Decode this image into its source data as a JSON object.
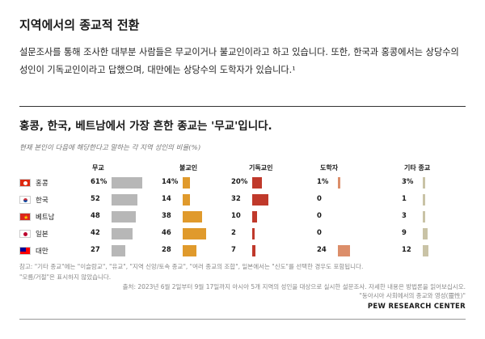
{
  "page": {
    "heading": "지역에서의 종교적 전환",
    "intro": "설문조사를 통해 조사한 대부분 사람들은 무교이거나 불교인이라고 하고 있습니다. 또한, 한국과 홍콩에서는 상당수의 성인이 기독교인이라고 답했으며, 대만에는 상당수의 도학자가 있습니다.¹"
  },
  "chart_data": {
    "type": "bar",
    "title": "홍콩, 한국, 베트남에서 가장 흔한 종교는 '무교'입니다.",
    "subtitle": "현재 본인이 다음에 해당한다고 말하는 각 지역 성인의 비율(%)",
    "countries": [
      "홍콩",
      "한국",
      "베트남",
      "일본",
      "대만"
    ],
    "flags": [
      "hongkong",
      "korea",
      "vietnam",
      "japan",
      "taiwan"
    ],
    "series": [
      {
        "name": "무교",
        "values": [
          61,
          52,
          48,
          42,
          27
        ],
        "labels": [
          "61%",
          "52",
          "48",
          "42",
          "27"
        ],
        "color": "#b7b7b7"
      },
      {
        "name": "불교인",
        "values": [
          14,
          14,
          38,
          46,
          28
        ],
        "labels": [
          "14%",
          "14",
          "38",
          "46",
          "28"
        ],
        "color": "#e09a2c"
      },
      {
        "name": "기독교인",
        "values": [
          20,
          32,
          10,
          2,
          7
        ],
        "labels": [
          "20%",
          "32",
          "10",
          "2",
          "7"
        ],
        "color": "#c0392b"
      },
      {
        "name": "도학자",
        "values": [
          1,
          0,
          0,
          0,
          24
        ],
        "labels": [
          "1%",
          "0",
          "0",
          "0",
          "24"
        ],
        "color": "#dc8e6a"
      },
      {
        "name": "기타 종교",
        "values": [
          3,
          1,
          3,
          9,
          12
        ],
        "labels": [
          "3%",
          "1",
          "3",
          "9",
          "12"
        ],
        "color": "#c9c3a6"
      }
    ],
    "notes": "참고: \"기타 종교\"에는 \"이슬람교\", \"유교\", \"지역 신앙/토속 종교\", \"여러 종교의 조합\", 일본에서는 \"신도\"를 선택한 경우도 포함됩니다.\n\"모름/거절\"은 표시하지 않았습니다.",
    "source": "출처: 2023년 6월 2일부터 9월 17일까지 아시아 5개 지역의 성인을 대상으로 실시한 설문조사. 자세한 내용은 방법론을 읽어보십시오.\n\"동아시아 사회에서의 종교와 영성(靈性)\"",
    "publisher": "PEW RESEARCH CENTER"
  }
}
